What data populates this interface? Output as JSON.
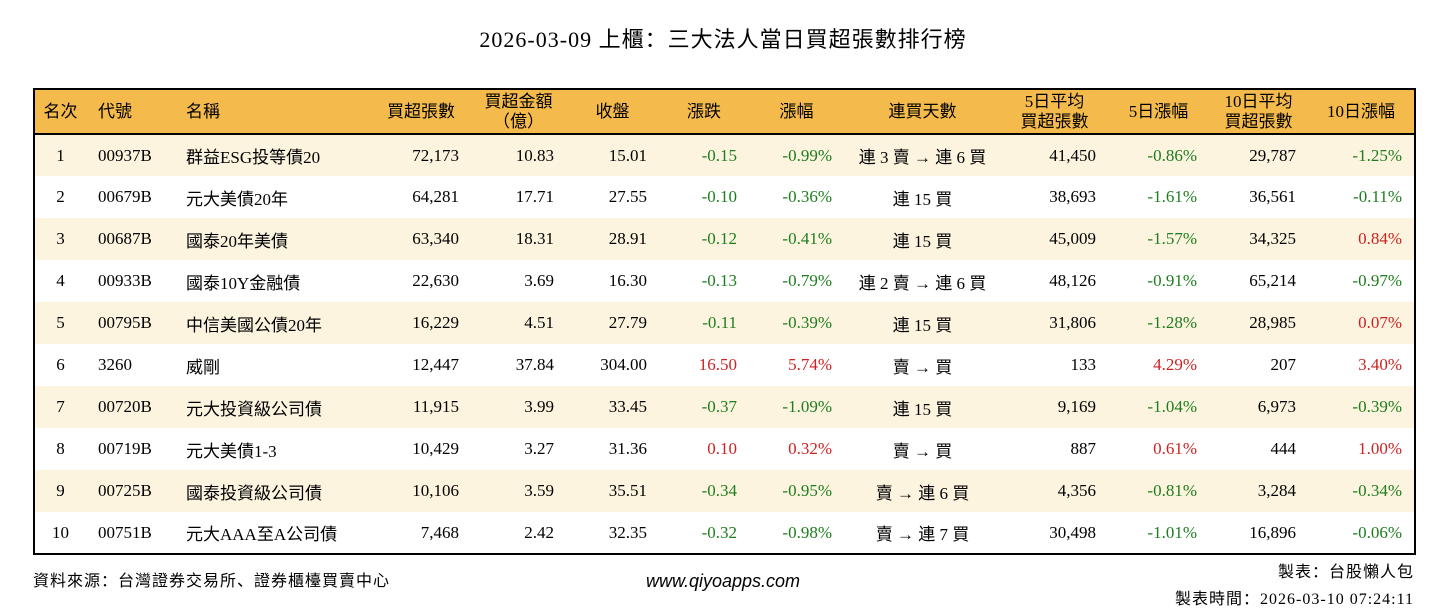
{
  "title": "2026-03-09 上櫃：三大法人當日買超張數排行榜",
  "colors": {
    "header_bg": "#F5BA4C",
    "row_alt_bg": "#FCF4DF",
    "up": "#CC2222",
    "down": "#1E7D1E"
  },
  "table": {
    "headers": [
      "名次",
      "代號",
      "名稱",
      "買超張數",
      "買超金額\n（億）",
      "收盤",
      "漲跌",
      "漲幅",
      "連買天數",
      "5日平均\n買超張數",
      "5日漲幅",
      "10日平均\n買超張數",
      "10日漲幅"
    ]
  },
  "chart_data": {
    "type": "table",
    "title": "2026-03-09 上櫃：三大法人當日買超張數排行榜",
    "columns": [
      "名次",
      "代號",
      "名稱",
      "買超張數",
      "買超金額（億）",
      "收盤",
      "漲跌",
      "漲幅",
      "連買天數",
      "5日平均買超張數",
      "5日漲幅",
      "10日平均買超張數",
      "10日漲幅"
    ],
    "rows": [
      {
        "rank": "1",
        "code": "00937B",
        "name": "群益ESG投等債20",
        "vol": "72,173",
        "amt": "10.83",
        "close": "15.01",
        "chg": "-0.15",
        "chg_pct": "-0.99%",
        "streak": "連 3 賣 → 連 6 買",
        "avg5": "41,450",
        "pct5": "-0.86%",
        "avg10": "29,787",
        "pct10": "-1.25%",
        "dir": "down",
        "dir5": "down",
        "dir10": "down"
      },
      {
        "rank": "2",
        "code": "00679B",
        "name": "元大美債20年",
        "vol": "64,281",
        "amt": "17.71",
        "close": "27.55",
        "chg": "-0.10",
        "chg_pct": "-0.36%",
        "streak": "連 15 買",
        "avg5": "38,693",
        "pct5": "-1.61%",
        "avg10": "36,561",
        "pct10": "-0.11%",
        "dir": "down",
        "dir5": "down",
        "dir10": "down"
      },
      {
        "rank": "3",
        "code": "00687B",
        "name": "國泰20年美債",
        "vol": "63,340",
        "amt": "18.31",
        "close": "28.91",
        "chg": "-0.12",
        "chg_pct": "-0.41%",
        "streak": "連 15 買",
        "avg5": "45,009",
        "pct5": "-1.57%",
        "avg10": "34,325",
        "pct10": "0.84%",
        "dir": "down",
        "dir5": "down",
        "dir10": "up"
      },
      {
        "rank": "4",
        "code": "00933B",
        "name": "國泰10Y金融債",
        "vol": "22,630",
        "amt": "3.69",
        "close": "16.30",
        "chg": "-0.13",
        "chg_pct": "-0.79%",
        "streak": "連 2 賣 → 連 6 買",
        "avg5": "48,126",
        "pct5": "-0.91%",
        "avg10": "65,214",
        "pct10": "-0.97%",
        "dir": "down",
        "dir5": "down",
        "dir10": "down"
      },
      {
        "rank": "5",
        "code": "00795B",
        "name": "中信美國公債20年",
        "vol": "16,229",
        "amt": "4.51",
        "close": "27.79",
        "chg": "-0.11",
        "chg_pct": "-0.39%",
        "streak": "連 15 買",
        "avg5": "31,806",
        "pct5": "-1.28%",
        "avg10": "28,985",
        "pct10": "0.07%",
        "dir": "down",
        "dir5": "down",
        "dir10": "up"
      },
      {
        "rank": "6",
        "code": "3260",
        "name": "威剛",
        "vol": "12,447",
        "amt": "37.84",
        "close": "304.00",
        "chg": "16.50",
        "chg_pct": "5.74%",
        "streak": "賣 → 買",
        "avg5": "133",
        "pct5": "4.29%",
        "avg10": "207",
        "pct10": "3.40%",
        "dir": "up",
        "dir5": "up",
        "dir10": "up"
      },
      {
        "rank": "7",
        "code": "00720B",
        "name": "元大投資級公司債",
        "vol": "11,915",
        "amt": "3.99",
        "close": "33.45",
        "chg": "-0.37",
        "chg_pct": "-1.09%",
        "streak": "連 15 買",
        "avg5": "9,169",
        "pct5": "-1.04%",
        "avg10": "6,973",
        "pct10": "-0.39%",
        "dir": "down",
        "dir5": "down",
        "dir10": "down"
      },
      {
        "rank": "8",
        "code": "00719B",
        "name": "元大美債1-3",
        "vol": "10,429",
        "amt": "3.27",
        "close": "31.36",
        "chg": "0.10",
        "chg_pct": "0.32%",
        "streak": "賣 → 買",
        "avg5": "887",
        "pct5": "0.61%",
        "avg10": "444",
        "pct10": "1.00%",
        "dir": "up",
        "dir5": "up",
        "dir10": "up"
      },
      {
        "rank": "9",
        "code": "00725B",
        "name": "國泰投資級公司債",
        "vol": "10,106",
        "amt": "3.59",
        "close": "35.51",
        "chg": "-0.34",
        "chg_pct": "-0.95%",
        "streak": "賣 → 連 6 買",
        "avg5": "4,356",
        "pct5": "-0.81%",
        "avg10": "3,284",
        "pct10": "-0.34%",
        "dir": "down",
        "dir5": "down",
        "dir10": "down"
      },
      {
        "rank": "10",
        "code": "00751B",
        "name": "元大AAA至A公司債",
        "vol": "7,468",
        "amt": "2.42",
        "close": "32.35",
        "chg": "-0.32",
        "chg_pct": "-0.98%",
        "streak": "賣 → 連 7 買",
        "avg5": "30,498",
        "pct5": "-1.01%",
        "avg10": "16,896",
        "pct10": "-0.06%",
        "dir": "down",
        "dir5": "down",
        "dir10": "down"
      }
    ]
  },
  "footer": {
    "source": "資料來源：台灣證券交易所、證券櫃檯買賣中心",
    "website": "www.qiyoapps.com",
    "maker": "製表：台股懶人包",
    "time": "製表時間：2026-03-10 07:24:11"
  }
}
